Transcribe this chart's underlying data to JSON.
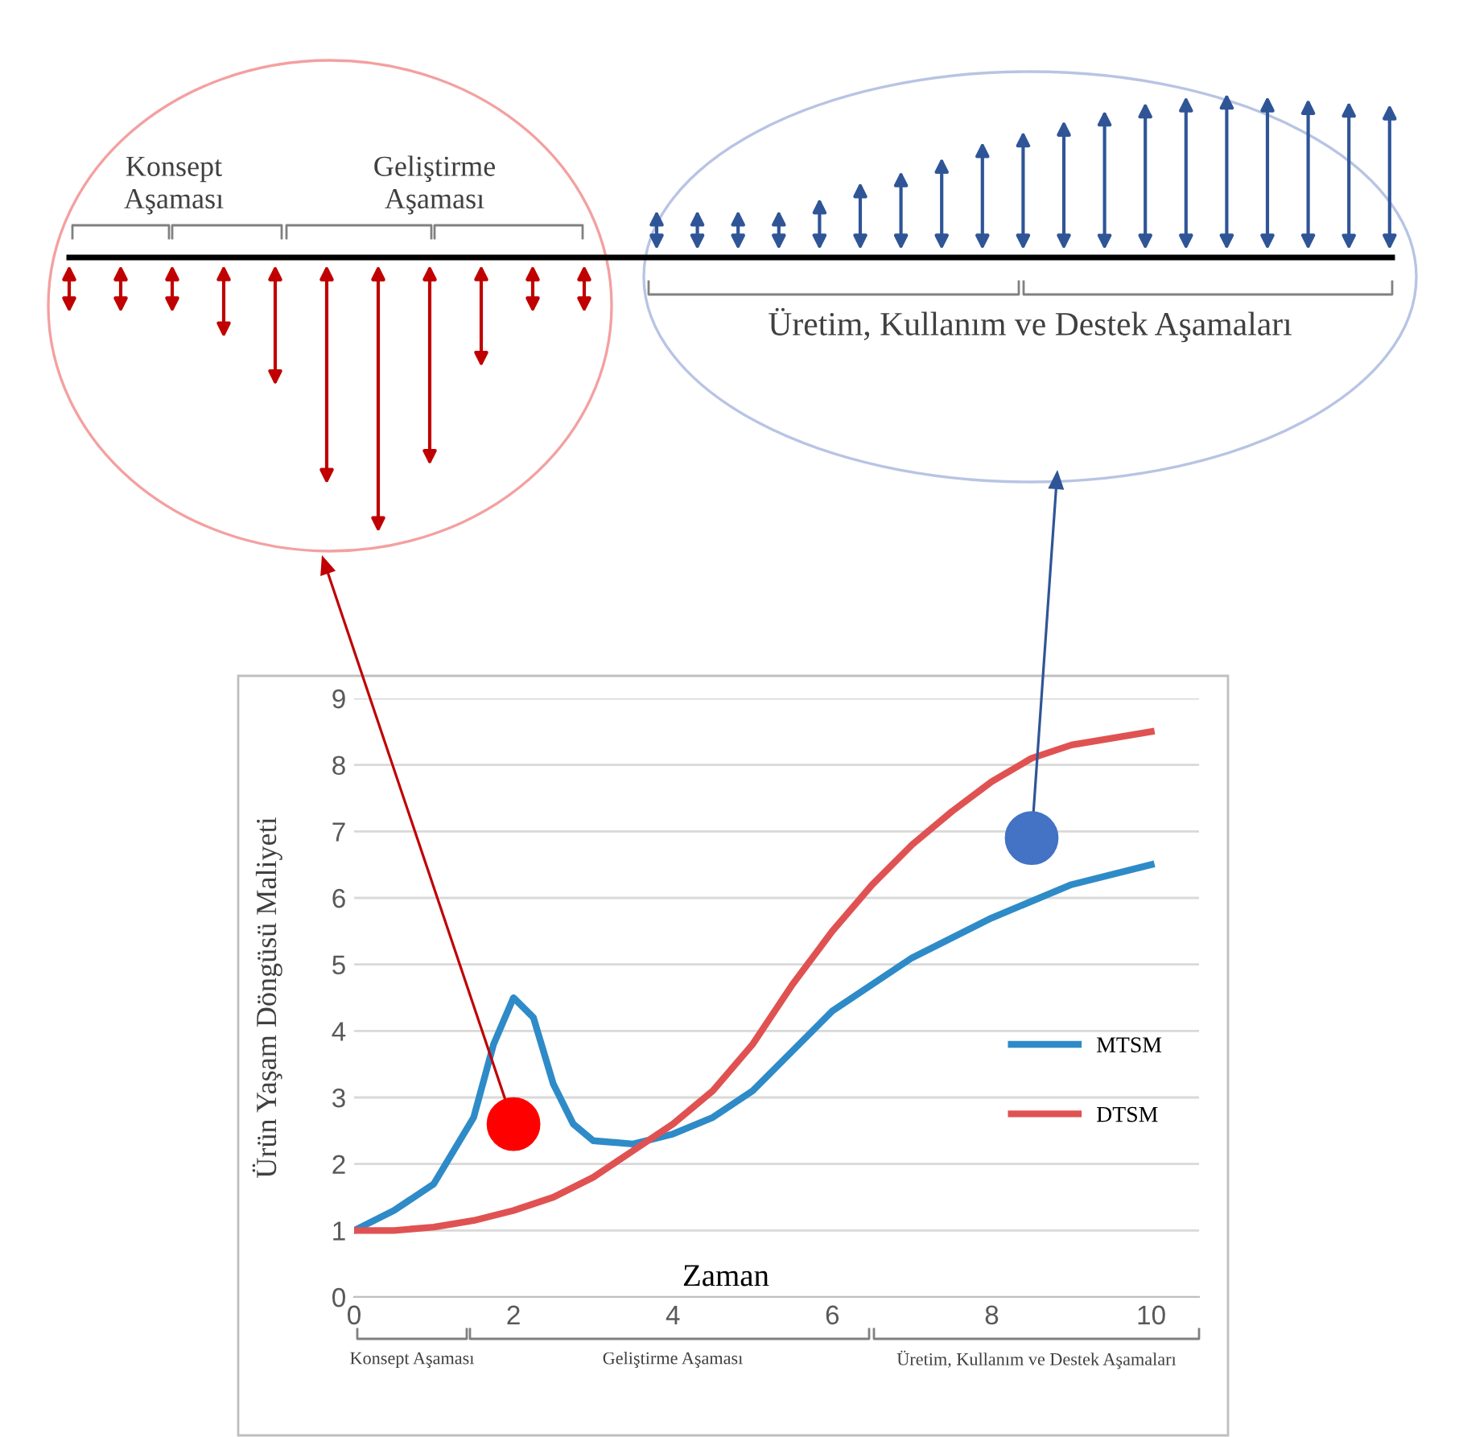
{
  "chart_data": {
    "type": "line",
    "xlabel": "Zaman",
    "ylabel": "Ürün Yaşam Döngüsü Maliyeti",
    "xlim": [
      0,
      10.6
    ],
    "xticks": [
      0,
      2,
      4,
      6,
      8,
      10
    ],
    "ylim": [
      0,
      9
    ],
    "yticks": [
      0,
      1,
      2,
      3,
      4,
      5,
      6,
      7,
      8,
      9
    ],
    "grid": "y",
    "legend": "right",
    "line_style": "solid",
    "series": [
      {
        "name": "MTSM",
        "color": "#2e8bc8",
        "x": [
          0,
          0.5,
          1,
          1.5,
          1.75,
          2,
          2.25,
          2.5,
          2.75,
          3,
          3.5,
          4,
          4.5,
          5,
          5.5,
          6,
          7,
          8,
          9,
          10
        ],
        "values": [
          1.0,
          1.3,
          1.7,
          2.7,
          3.8,
          4.5,
          4.2,
          3.2,
          2.6,
          2.35,
          2.3,
          2.45,
          2.7,
          3.1,
          3.7,
          4.3,
          5.1,
          5.7,
          6.2,
          6.5
        ]
      },
      {
        "name": "DTSM",
        "color": "#e05252",
        "x": [
          0,
          0.5,
          1,
          1.5,
          2,
          2.5,
          3,
          3.5,
          4,
          4.5,
          5,
          5.5,
          6,
          6.5,
          7,
          7.5,
          8,
          8.5,
          9,
          9.5,
          10
        ],
        "values": [
          1.0,
          1.0,
          1.05,
          1.15,
          1.3,
          1.5,
          1.8,
          2.2,
          2.6,
          3.1,
          3.8,
          4.7,
          5.5,
          6.2,
          6.8,
          7.3,
          7.75,
          8.1,
          8.3,
          8.4,
          8.5
        ]
      }
    ],
    "annotations": [
      "Konsept\nAşaması",
      "Geliştirme\nAşaması",
      "Üretim, Kullanım ve Destek Aşamaları",
      "Konsept Aşaması",
      "Geliştirme Aşaması",
      "Üretim, Kullanım ve Destek Aşamaları"
    ]
  }
}
